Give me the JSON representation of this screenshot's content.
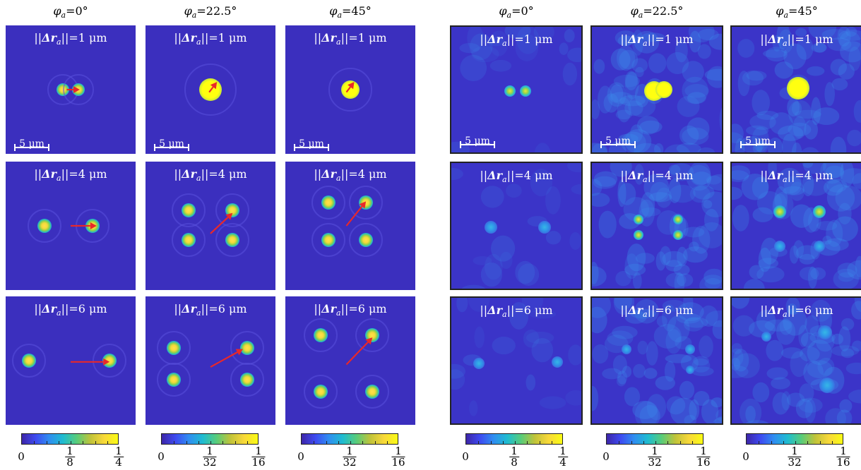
{
  "headers": [
    {
      "phi": "φ",
      "sub": "a",
      "value": "=0°"
    },
    {
      "phi": "φ",
      "sub": "a",
      "value": "=22.5°"
    },
    {
      "phi": "φ",
      "sub": "a",
      "value": "=45°"
    },
    {
      "phi": "φ",
      "sub": "a",
      "value": "=0°"
    },
    {
      "phi": "φ",
      "sub": "a",
      "value": "=22.5°"
    },
    {
      "phi": "φ",
      "sub": "a",
      "value": "=45°"
    }
  ],
  "panel_labels": {
    "open": "||",
    "delta": "Δr",
    "sub": "a",
    "close": "||",
    "rows": [
      "=1 μm",
      "=4 μm",
      "=6 μm"
    ]
  },
  "scalebar_text": "5 μm",
  "colorbars": [
    {
      "min": "0",
      "mid_num": "1",
      "mid_den": "8",
      "max_num": "1",
      "max_den": "4"
    },
    {
      "min": "0",
      "mid_num": "1",
      "mid_den": "32",
      "max_num": "1",
      "max_den": "16"
    },
    {
      "min": "0",
      "mid_num": "1",
      "mid_den": "32",
      "max_num": "1",
      "max_den": "16"
    },
    {
      "min": "0",
      "mid_num": "1",
      "mid_den": "8",
      "max_num": "1",
      "max_den": "4"
    },
    {
      "min": "0",
      "mid_num": "1",
      "mid_den": "32",
      "max_num": "1",
      "max_den": "16"
    },
    {
      "min": "0",
      "mid_num": "1",
      "mid_den": "32",
      "max_num": "1",
      "max_den": "16"
    }
  ],
  "colors": {
    "background_sim": "#3b2fbe",
    "background_exp": "#3b34c8",
    "arrow": "#e8282a",
    "text": "#ffffff"
  }
}
